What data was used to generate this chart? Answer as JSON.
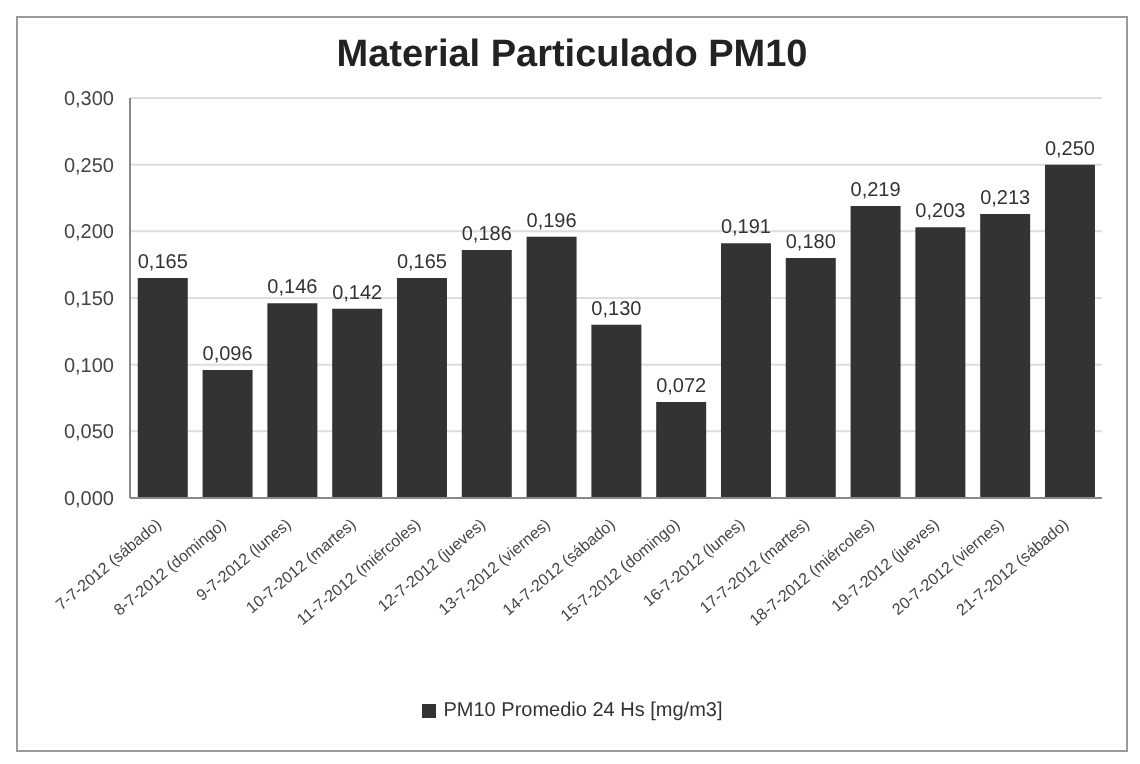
{
  "chart_data": {
    "type": "bar",
    "title": "Material Particulado PM10",
    "categories": [
      "7-7-2012 (sábado)",
      "8-7-2012 (domingo)",
      "9-7-2012 (lunes)",
      "10-7-2012 (martes)",
      "11-7-2012 (miércoles)",
      "12-7-2012 (jueves)",
      "13-7-2012 (viernes)",
      "14-7-2012 (sábado)",
      "15-7-2012 (domingo)",
      "16-7-2012 (lunes)",
      "17-7-2012 (martes)",
      "18-7-2012 (miércoles)",
      "19-7-2012 (jueves)",
      "20-7-2012 (viernes)",
      "21-7-2012 (sábado)"
    ],
    "series": [
      {
        "name": "PM10 Promedio 24 Hs [mg/m3]",
        "color": "#333333",
        "values": [
          0.165,
          0.096,
          0.146,
          0.142,
          0.165,
          0.186,
          0.196,
          0.13,
          0.072,
          0.191,
          0.18,
          0.219,
          0.203,
          0.213,
          0.25
        ],
        "value_labels": [
          "0,165",
          "0,096",
          "0,146",
          "0,142",
          "0,165",
          "0,186",
          "0,196",
          "0,130",
          "0,072",
          "0,191",
          "0,180",
          "0,219",
          "0,203",
          "0,213",
          "0,250"
        ]
      }
    ],
    "ylim": [
      0,
      0.3
    ],
    "yticks": [
      {
        "value": 0,
        "label": "0,000"
      },
      {
        "value": 0.05,
        "label": "0,050"
      },
      {
        "value": 0.1,
        "label": "0,100"
      },
      {
        "value": 0.15,
        "label": "0,150"
      },
      {
        "value": 0.2,
        "label": "0,200"
      },
      {
        "value": 0.25,
        "label": "0,250"
      },
      {
        "value": 0.3,
        "label": "0,300"
      }
    ],
    "grid": "y",
    "legend": "bottom"
  }
}
